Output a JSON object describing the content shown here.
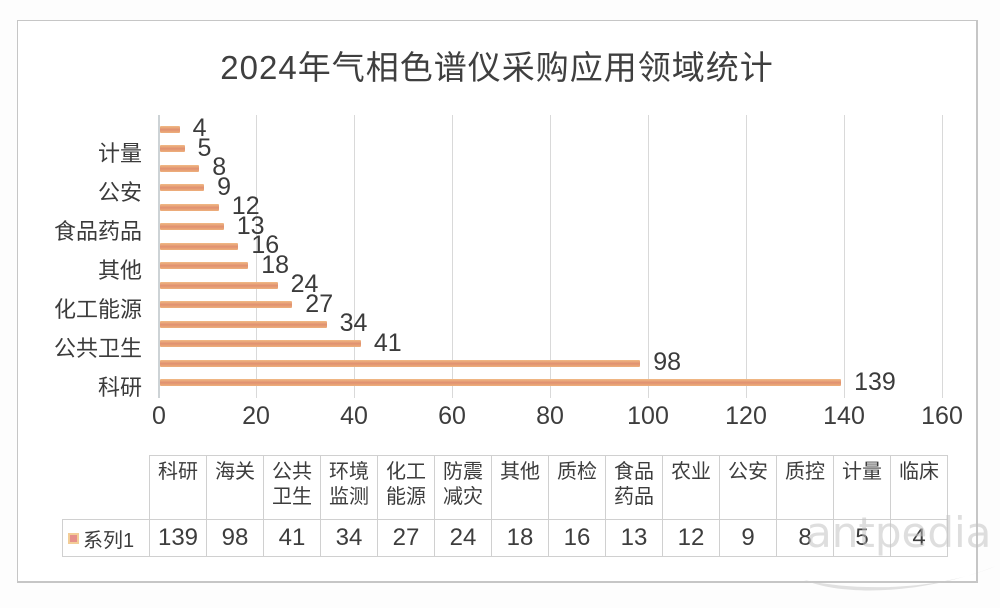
{
  "chart_data": {
    "type": "bar",
    "orientation": "horizontal",
    "title": "2024年气相色谱仪采购应用领域统计",
    "categories": [
      "科研",
      "海关",
      "公共卫生",
      "环境监测",
      "化工能源",
      "防震减灾",
      "其他",
      "质检",
      "食品药品",
      "农业",
      "公安",
      "质控",
      "计量",
      "临床"
    ],
    "series": [
      {
        "name": "系列1",
        "values": [
          139,
          98,
          41,
          34,
          27,
          24,
          18,
          16,
          13,
          12,
          9,
          8,
          5,
          4
        ]
      }
    ],
    "xlim": [
      0,
      160
    ],
    "xticks": [
      0,
      20,
      40,
      60,
      80,
      100,
      120,
      140,
      160
    ],
    "grid": true,
    "data_labels": true,
    "display_order": "ascending values top to bottom",
    "visible_axis_labels": [
      "计量",
      "公安",
      "食品药品",
      "其他",
      "化工能源",
      "公共卫生",
      "科研"
    ],
    "bar_color": "#e99e72",
    "legend_position": "data-table"
  },
  "table": {
    "series_label": "系列1",
    "columns": [
      "科研",
      "海关",
      "公共卫生",
      "环境监测",
      "化工能源",
      "防震减灾",
      "其他",
      "质检",
      "食品药品",
      "农业",
      "公安",
      "质控",
      "计量",
      "临床"
    ],
    "values": [
      139,
      98,
      41,
      34,
      27,
      24,
      18,
      16,
      13,
      12,
      9,
      8,
      5,
      4
    ],
    "legend_key_fill": "#e6908a",
    "legend_key_border": "#f3cd97"
  },
  "watermark": {
    "text": "antpedia"
  }
}
